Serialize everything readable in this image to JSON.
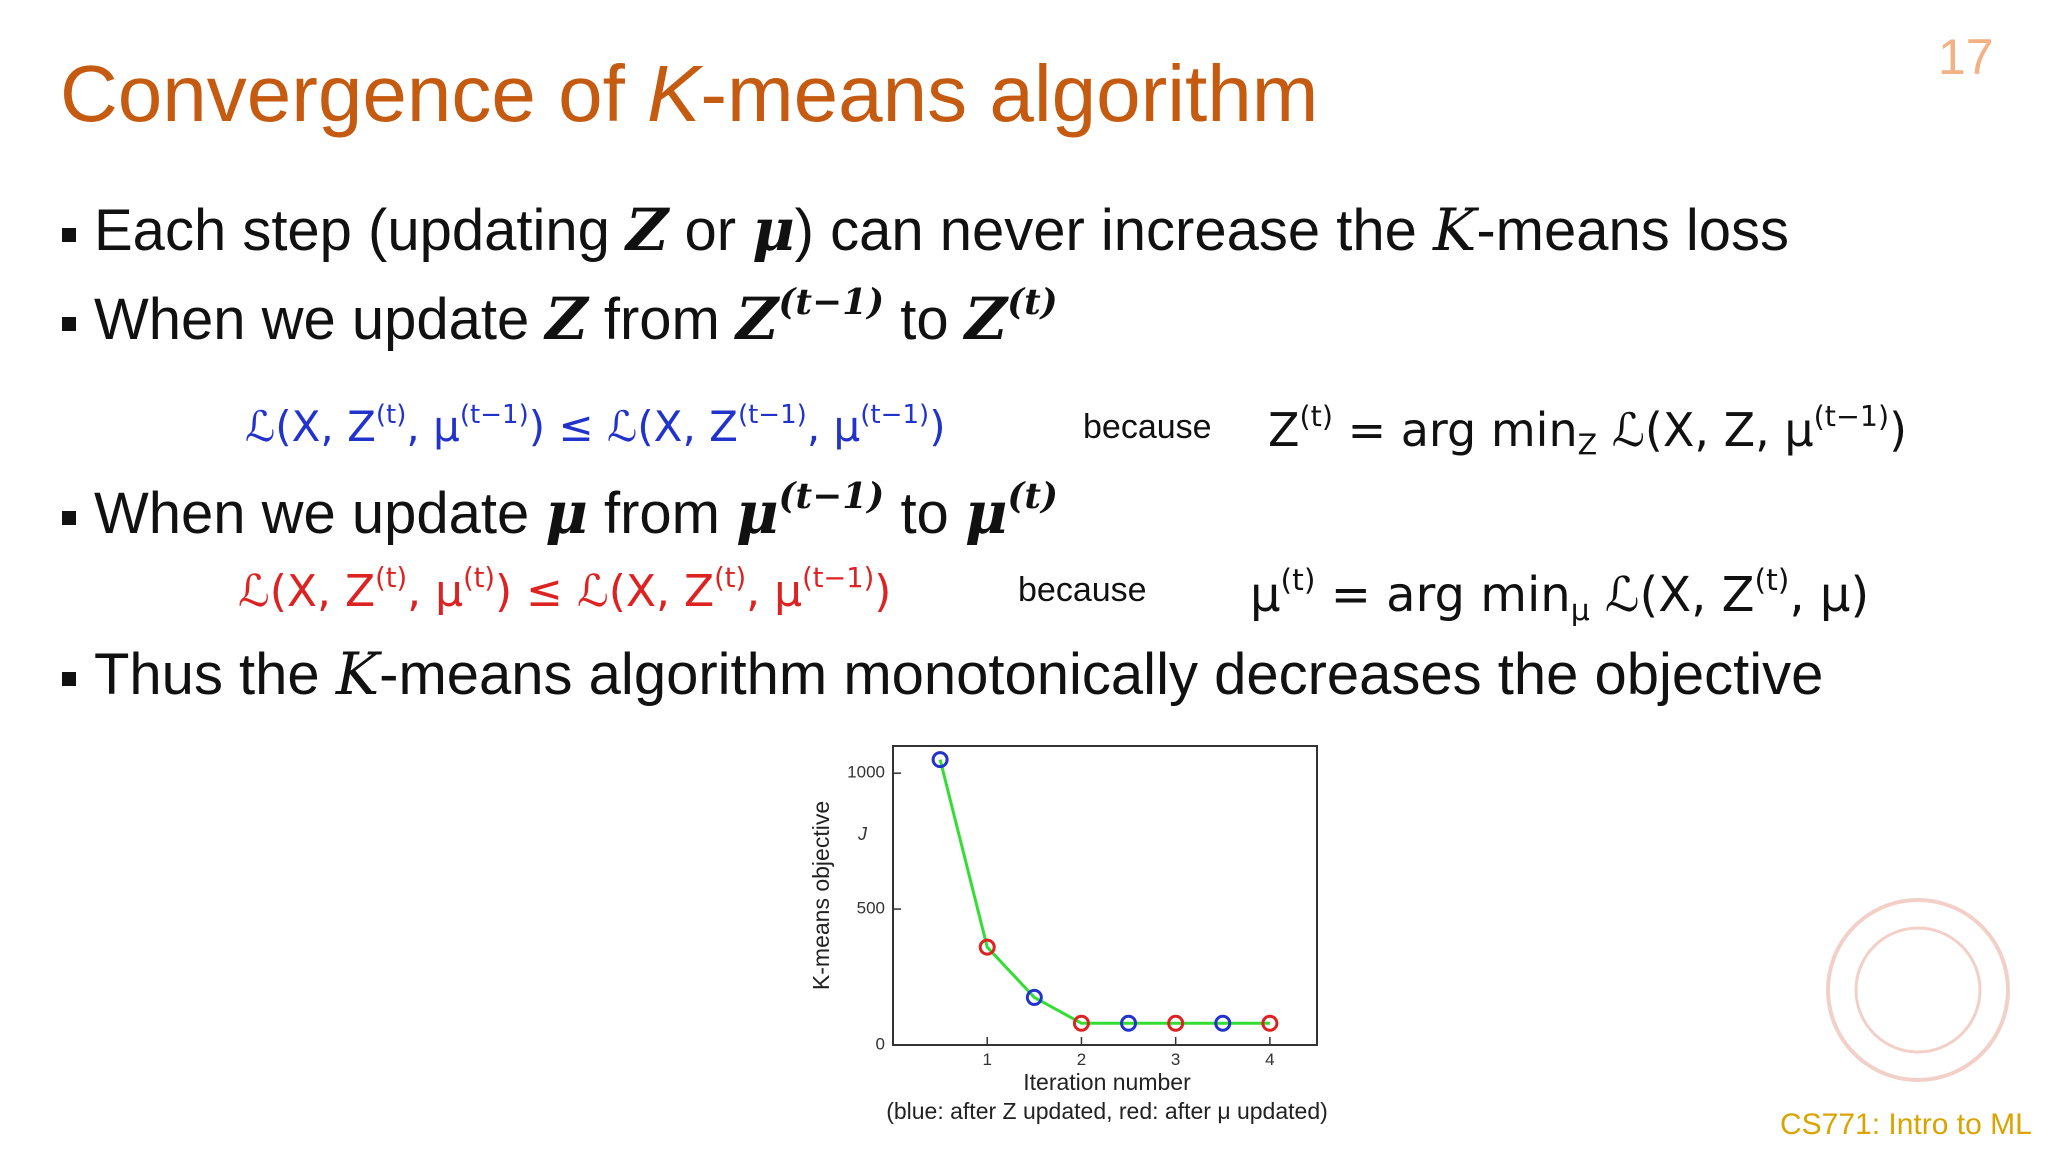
{
  "page_number": "17",
  "title": [
    {
      "text": "Convergence of "
    },
    {
      "text": "K",
      "style": "italic"
    },
    {
      "text": "-means algorithm"
    }
  ],
  "bullets": [
    [
      {
        "text": "Each step (updating "
      },
      {
        "text": "Z",
        "style": "math-bold"
      },
      {
        "text": " or "
      },
      {
        "text": "μ",
        "style": "math-bold"
      },
      {
        "text": ") can never increase the "
      },
      {
        "text": "K",
        "style": "math"
      },
      {
        "text": "-means loss"
      }
    ],
    [
      {
        "text": "When we update "
      },
      {
        "text": "Z",
        "style": "math-bold"
      },
      {
        "text": " from "
      },
      {
        "text": "Z",
        "style": "math-bold"
      },
      {
        "text": "(t−1)",
        "style": "sup-bold"
      },
      {
        "text": " to "
      },
      {
        "text": "Z",
        "style": "math-bold"
      },
      {
        "text": "(t)",
        "style": "sup-bold"
      }
    ],
    [
      {
        "text": "When we update "
      },
      {
        "text": "μ",
        "style": "math-bold"
      },
      {
        "text": " from "
      },
      {
        "text": "μ",
        "style": "math-bold"
      },
      {
        "text": "(t−1)",
        "style": "sup-bold"
      },
      {
        "text": " to "
      },
      {
        "text": "μ",
        "style": "math-bold"
      },
      {
        "text": "(t)",
        "style": "sup-bold"
      }
    ],
    [
      {
        "text": "Thus the "
      },
      {
        "text": "K",
        "style": "math"
      },
      {
        "text": "-means algorithm monotonically decreases the objective"
      }
    ]
  ],
  "formulas": [
    {
      "color": "#2233cc",
      "inequality": [
        {
          "text": "ℒ(X, Z"
        },
        {
          "text": "(t)",
          "style": "sup"
        },
        {
          "text": ", μ"
        },
        {
          "text": "(t−1)",
          "style": "sup"
        },
        {
          "text": ") ≤ ℒ(X, Z"
        },
        {
          "text": "(t−1)",
          "style": "sup"
        },
        {
          "text": ", μ"
        },
        {
          "text": "(t−1)",
          "style": "sup"
        },
        {
          "text": ")"
        }
      ],
      "because": "because",
      "reason": [
        {
          "text": "Z"
        },
        {
          "text": "(t)",
          "style": "sup"
        },
        {
          "text": " = arg min"
        },
        {
          "text": "Z",
          "style": "sub"
        },
        {
          "text": " ℒ(X, Z, μ"
        },
        {
          "text": "(t−1)",
          "style": "sup"
        },
        {
          "text": ")"
        }
      ]
    },
    {
      "color": "#dd2222",
      "inequality": [
        {
          "text": "ℒ(X, Z"
        },
        {
          "text": "(t)",
          "style": "sup"
        },
        {
          "text": ", μ"
        },
        {
          "text": "(t)",
          "style": "sup"
        },
        {
          "text": ") ≤ ℒ(X, Z"
        },
        {
          "text": "(t)",
          "style": "sup"
        },
        {
          "text": ", μ"
        },
        {
          "text": "(t−1)",
          "style": "sup"
        },
        {
          "text": ")"
        }
      ],
      "because": "because",
      "reason": [
        {
          "text": "μ"
        },
        {
          "text": "(t)",
          "style": "sup"
        },
        {
          "text": " = arg min"
        },
        {
          "text": "μ",
          "style": "sub"
        },
        {
          "text": " ℒ(X, Z"
        },
        {
          "text": "(t)",
          "style": "sup"
        },
        {
          "text": ", μ)"
        }
      ]
    }
  ],
  "chart_data": {
    "type": "line",
    "x": [
      0.5,
      1,
      1.5,
      2,
      2.5,
      3,
      3.5,
      4
    ],
    "values": [
      1050,
      360,
      175,
      80,
      80,
      80,
      80,
      80
    ],
    "line_color": "#33dd33",
    "marker_colors": [
      "#2233cc",
      "#dd2222",
      "#2233cc",
      "#dd2222",
      "#2233cc",
      "#dd2222",
      "#2233cc",
      "#dd2222"
    ],
    "xlim": [
      0,
      4.5
    ],
    "ylim": [
      0,
      1100
    ],
    "xticks": [
      1,
      2,
      3,
      4
    ],
    "yticks": [
      0,
      500,
      1000
    ],
    "xlabel": "Iteration number",
    "ylabel": "K-means objective",
    "annotation": "J",
    "caption": "(blue: after Z updated, red: after μ updated)"
  },
  "footer": "CS771: Intro to ML"
}
